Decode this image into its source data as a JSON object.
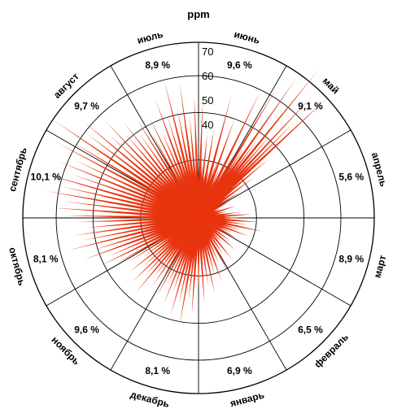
{
  "chart_data": {
    "type": "polar-bar",
    "unit": "ppm",
    "radial_ticks": [
      40,
      50,
      60,
      70
    ],
    "radial_max": 72,
    "months": [
      {
        "name": "июнь",
        "pct": "9,6 %"
      },
      {
        "name": "май",
        "pct": "9,1 %"
      },
      {
        "name": "апрель",
        "pct": "5,6 %"
      },
      {
        "name": "март",
        "pct": "8,9 %"
      },
      {
        "name": "февраль",
        "pct": "6,5 %"
      },
      {
        "name": "январь",
        "pct": "6,9 %"
      },
      {
        "name": "декабрь",
        "pct": "8,1 %"
      },
      {
        "name": "ноябрь",
        "pct": "9,6 %"
      },
      {
        "name": "октябрь",
        "pct": "8,1 %"
      },
      {
        "name": "сентябрь",
        "pct": "10,1 %"
      },
      {
        "name": "август",
        "pct": "9,7 %"
      },
      {
        "name": "июль",
        "pct": "8,9 %"
      }
    ],
    "spikes": [
      {
        "dir": 2,
        "value": 48
      },
      {
        "dir": 4,
        "value": 22
      },
      {
        "dir": 6,
        "value": 35
      },
      {
        "dir": 8,
        "value": 18
      },
      {
        "dir": 10,
        "value": 38
      },
      {
        "dir": 12,
        "value": 20
      },
      {
        "dir": 15,
        "value": 52
      },
      {
        "dir": 18,
        "value": 25
      },
      {
        "dir": 20,
        "value": 44
      },
      {
        "dir": 23,
        "value": 22
      },
      {
        "dir": 26,
        "value": 58
      },
      {
        "dir": 29,
        "value": 30
      },
      {
        "dir": 31,
        "value": 62
      },
      {
        "dir": 33,
        "value": 35
      },
      {
        "dir": 35,
        "value": 70
      },
      {
        "dir": 37,
        "value": 40
      },
      {
        "dir": 39,
        "value": 78
      },
      {
        "dir": 41,
        "value": 45
      },
      {
        "dir": 43,
        "value": 68
      },
      {
        "dir": 45,
        "value": 55
      },
      {
        "dir": 47,
        "value": 72
      },
      {
        "dir": 50,
        "value": 38
      },
      {
        "dir": 54,
        "value": 28
      },
      {
        "dir": 58,
        "value": 20
      },
      {
        "dir": 62,
        "value": 14
      },
      {
        "dir": 67,
        "value": 10
      },
      {
        "dir": 72,
        "value": 16
      },
      {
        "dir": 77,
        "value": 12
      },
      {
        "dir": 82,
        "value": 17
      },
      {
        "dir": 86,
        "value": 22
      },
      {
        "dir": 90,
        "value": 18
      },
      {
        "dir": 94,
        "value": 25
      },
      {
        "dir": 98,
        "value": 20
      },
      {
        "dir": 102,
        "value": 27
      },
      {
        "dir": 106,
        "value": 18
      },
      {
        "dir": 110,
        "value": 22
      },
      {
        "dir": 114,
        "value": 15
      },
      {
        "dir": 118,
        "value": 18
      },
      {
        "dir": 122,
        "value": 12
      },
      {
        "dir": 126,
        "value": 16
      },
      {
        "dir": 131,
        "value": 20
      },
      {
        "dir": 136,
        "value": 14
      },
      {
        "dir": 141,
        "value": 22
      },
      {
        "dir": 146,
        "value": 18
      },
      {
        "dir": 151,
        "value": 26
      },
      {
        "dir": 156,
        "value": 20
      },
      {
        "dir": 160,
        "value": 28
      },
      {
        "dir": 164,
        "value": 24
      },
      {
        "dir": 168,
        "value": 32
      },
      {
        "dir": 172,
        "value": 28
      },
      {
        "dir": 176,
        "value": 35
      },
      {
        "dir": 180,
        "value": 30
      },
      {
        "dir": 184,
        "value": 40
      },
      {
        "dir": 187,
        "value": 34
      },
      {
        "dir": 190,
        "value": 45
      },
      {
        "dir": 193,
        "value": 36
      },
      {
        "dir": 196,
        "value": 42
      },
      {
        "dir": 199,
        "value": 32
      },
      {
        "dir": 202,
        "value": 38
      },
      {
        "dir": 205,
        "value": 30
      },
      {
        "dir": 208,
        "value": 36
      },
      {
        "dir": 211,
        "value": 28
      },
      {
        "dir": 214,
        "value": 34
      },
      {
        "dir": 217,
        "value": 30
      },
      {
        "dir": 220,
        "value": 40
      },
      {
        "dir": 223,
        "value": 32
      },
      {
        "dir": 226,
        "value": 38
      },
      {
        "dir": 229,
        "value": 30
      },
      {
        "dir": 232,
        "value": 36
      },
      {
        "dir": 235,
        "value": 28
      },
      {
        "dir": 238,
        "value": 33
      },
      {
        "dir": 241,
        "value": 38
      },
      {
        "dir": 244,
        "value": 44
      },
      {
        "dir": 247,
        "value": 40
      },
      {
        "dir": 250,
        "value": 50
      },
      {
        "dir": 253,
        "value": 45
      },
      {
        "dir": 256,
        "value": 55
      },
      {
        "dir": 259,
        "value": 48
      },
      {
        "dir": 262,
        "value": 52
      },
      {
        "dir": 265,
        "value": 46
      },
      {
        "dir": 268,
        "value": 50
      },
      {
        "dir": 271,
        "value": 54
      },
      {
        "dir": 274,
        "value": 60
      },
      {
        "dir": 277,
        "value": 56
      },
      {
        "dir": 280,
        "value": 64
      },
      {
        "dir": 283,
        "value": 58
      },
      {
        "dir": 286,
        "value": 66
      },
      {
        "dir": 289,
        "value": 55
      },
      {
        "dir": 292,
        "value": 62
      },
      {
        "dir": 295,
        "value": 56
      },
      {
        "dir": 298,
        "value": 66
      },
      {
        "dir": 301,
        "value": 60
      },
      {
        "dir": 304,
        "value": 72
      },
      {
        "dir": 307,
        "value": 58
      },
      {
        "dir": 310,
        "value": 62
      },
      {
        "dir": 313,
        "value": 50
      },
      {
        "dir": 316,
        "value": 55
      },
      {
        "dir": 319,
        "value": 46
      },
      {
        "dir": 322,
        "value": 50
      },
      {
        "dir": 325,
        "value": 42
      },
      {
        "dir": 328,
        "value": 48
      },
      {
        "dir": 331,
        "value": 40
      },
      {
        "dir": 334,
        "value": 46
      },
      {
        "dir": 337,
        "value": 38
      },
      {
        "dir": 340,
        "value": 52
      },
      {
        "dir": 343,
        "value": 44
      },
      {
        "dir": 346,
        "value": 58
      },
      {
        "dir": 349,
        "value": 46
      },
      {
        "dir": 352,
        "value": 56
      },
      {
        "dir": 355,
        "value": 42
      },
      {
        "dir": 358,
        "value": 50
      }
    ],
    "colors": {
      "spike": "#e8340f",
      "grid": "#000000",
      "background": "#ffffff"
    }
  }
}
